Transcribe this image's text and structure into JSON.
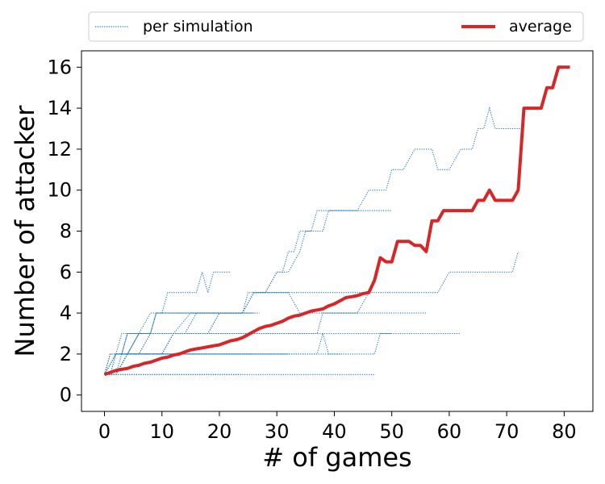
{
  "chart_data": {
    "type": "line",
    "title": "",
    "xlabel": "# of games",
    "ylabel": "Number of attacker",
    "xlim": [
      -4,
      85
    ],
    "ylim": [
      -0.8,
      16.8
    ],
    "xticks": [
      0,
      10,
      20,
      30,
      40,
      50,
      60,
      70,
      80
    ],
    "yticks": [
      0,
      2,
      4,
      6,
      8,
      10,
      12,
      14,
      16
    ],
    "grid": false,
    "legend": {
      "placement": "top, above plot",
      "entries": [
        "per simulation",
        "average"
      ]
    },
    "colors": {
      "per_simulation": "#1f77b4",
      "average": "#d62728"
    },
    "series": [
      {
        "name": "average",
        "x": [
          0,
          1,
          2,
          3,
          4,
          5,
          6,
          7,
          8,
          9,
          10,
          11,
          12,
          13,
          14,
          15,
          16,
          17,
          18,
          19,
          20,
          21,
          22,
          23,
          24,
          25,
          26,
          27,
          28,
          29,
          30,
          31,
          32,
          33,
          34,
          35,
          36,
          37,
          38,
          39,
          40,
          41,
          42,
          43,
          44,
          45,
          46,
          47,
          48,
          49,
          50,
          51,
          52,
          53,
          54,
          55,
          56,
          57,
          58,
          59,
          60,
          61,
          62,
          63,
          64,
          65,
          66,
          67,
          68,
          69,
          70,
          71,
          72,
          73,
          74,
          75,
          76,
          77,
          78,
          79,
          80,
          81
        ],
        "y": [
          1.0,
          1.1,
          1.2,
          1.25,
          1.3,
          1.4,
          1.45,
          1.55,
          1.6,
          1.7,
          1.8,
          1.85,
          1.95,
          2.0,
          2.1,
          2.2,
          2.25,
          2.3,
          2.35,
          2.4,
          2.45,
          2.55,
          2.65,
          2.7,
          2.8,
          2.95,
          3.1,
          3.25,
          3.35,
          3.4,
          3.5,
          3.6,
          3.75,
          3.85,
          3.9,
          4.0,
          4.1,
          4.15,
          4.2,
          4.35,
          4.45,
          4.6,
          4.75,
          4.8,
          4.85,
          4.95,
          5.0,
          5.6,
          6.7,
          6.5,
          6.5,
          7.5,
          7.5,
          7.5,
          7.3,
          7.3,
          7.0,
          8.5,
          8.5,
          9.0,
          9.0,
          9.0,
          9.0,
          9.0,
          9.0,
          9.5,
          9.5,
          10.0,
          9.5,
          9.5,
          9.5,
          9.5,
          10.0,
          14.0,
          14.0,
          14.0,
          14.0,
          15.0,
          15.0,
          16.0,
          16.0,
          16.0
        ]
      },
      {
        "name": "per simulation",
        "x": [
          0,
          2,
          4,
          6,
          8,
          10,
          12,
          14,
          16,
          18,
          20,
          22,
          24
        ],
        "y": [
          1,
          1,
          1,
          1,
          1,
          1,
          1,
          1,
          1,
          1,
          1,
          1,
          1
        ]
      },
      {
        "name": "per simulation",
        "x": [
          0,
          1,
          2,
          4,
          8,
          12,
          16,
          20,
          24,
          26,
          30,
          36,
          42,
          46,
          47
        ],
        "y": [
          1,
          1,
          1,
          1,
          1,
          1,
          1,
          1,
          1,
          1,
          1,
          1,
          1,
          1,
          1
        ]
      },
      {
        "name": "per simulation",
        "x": [
          0,
          1,
          3,
          6,
          9,
          12,
          15,
          17
        ],
        "y": [
          1,
          2,
          2,
          2,
          2,
          2,
          2,
          2
        ]
      },
      {
        "name": "per simulation",
        "x": [
          0,
          1,
          2,
          5,
          10,
          15,
          20,
          25,
          30,
          32
        ],
        "y": [
          1,
          2,
          2,
          2,
          2,
          2,
          2,
          2,
          2,
          2
        ]
      },
      {
        "name": "per simulation",
        "x": [
          0,
          1,
          2,
          4,
          8,
          12,
          16,
          20,
          24,
          26
        ],
        "y": [
          1,
          1,
          2,
          2,
          2,
          2,
          2,
          2,
          2,
          2
        ]
      },
      {
        "name": "per simulation",
        "x": [
          0,
          1,
          2,
          3,
          4,
          6,
          10,
          14,
          18,
          22,
          25
        ],
        "y": [
          1,
          1,
          2,
          2,
          3,
          3,
          3,
          3,
          3,
          3,
          3
        ]
      },
      {
        "name": "per simulation",
        "x": [
          0,
          1,
          2,
          3,
          5,
          10,
          15,
          20,
          25,
          30,
          35,
          40,
          45,
          50
        ],
        "y": [
          1,
          2,
          2,
          3,
          3,
          3,
          3,
          3,
          3,
          3,
          3,
          3,
          3,
          3
        ]
      },
      {
        "name": "per simulation",
        "x": [
          0,
          2,
          4,
          6,
          8,
          10,
          12,
          14,
          16,
          17
        ],
        "y": [
          1,
          1,
          2,
          2,
          3,
          3,
          3,
          3,
          3,
          3
        ]
      },
      {
        "name": "per simulation",
        "x": [
          0,
          2,
          4,
          6,
          8,
          9,
          10,
          12,
          14,
          16,
          18,
          20,
          22,
          24,
          27
        ],
        "y": [
          1,
          2,
          2,
          3,
          3,
          4,
          4,
          4,
          4,
          4,
          4,
          4,
          4,
          4,
          4
        ]
      },
      {
        "name": "per simulation",
        "x": [
          0,
          2,
          3,
          4,
          6,
          8,
          9,
          10,
          12,
          14,
          16,
          18,
          20,
          22,
          24,
          26
        ],
        "y": [
          1,
          1,
          2,
          2,
          3,
          3,
          4,
          4,
          4,
          4,
          4,
          4,
          4,
          4,
          4,
          4
        ]
      },
      {
        "name": "per simulation",
        "x": [
          0,
          2,
          3,
          4,
          5,
          6,
          8,
          10,
          11,
          12,
          14,
          15,
          16,
          17,
          18,
          19,
          20,
          21,
          22
        ],
        "y": [
          1,
          2,
          2,
          3,
          3,
          3,
          4,
          4,
          5,
          5,
          5,
          5,
          5,
          6,
          5,
          6,
          6,
          6,
          6
        ]
      },
      {
        "name": "per simulation",
        "x": [
          0,
          2,
          4,
          6,
          8,
          10,
          12,
          15,
          18,
          20,
          22,
          24,
          26,
          28,
          30,
          32,
          34,
          35,
          36,
          38,
          40,
          42,
          44,
          46
        ],
        "y": [
          1,
          2,
          2,
          3,
          3,
          3,
          3,
          4,
          4,
          4,
          4,
          4,
          5,
          5,
          5,
          5,
          5,
          5,
          5,
          5,
          5,
          5,
          5,
          5
        ]
      },
      {
        "name": "per simulation",
        "x": [
          0,
          2,
          4,
          6,
          8,
          10,
          12,
          14,
          16,
          18,
          20,
          22,
          24,
          25,
          26,
          28,
          30,
          32,
          34,
          36,
          38,
          40,
          42,
          44,
          46,
          48,
          50,
          52,
          54,
          55,
          56
        ],
        "y": [
          1,
          2,
          2,
          2,
          3,
          3,
          3,
          3,
          4,
          4,
          4,
          4,
          4,
          5,
          5,
          5,
          5,
          5,
          4,
          4,
          4,
          4,
          4,
          4,
          4,
          4,
          4,
          4,
          4,
          4,
          4
        ]
      },
      {
        "name": "per simulation",
        "x": [
          0,
          2,
          4,
          6,
          8,
          10,
          12,
          14,
          16,
          18,
          20,
          22,
          24,
          26,
          28,
          30,
          32,
          34,
          35,
          36,
          37,
          38,
          39,
          40,
          41
        ],
        "y": [
          1,
          1,
          2,
          2,
          2,
          2,
          2,
          2,
          2,
          2,
          2,
          2,
          2,
          2,
          2,
          2,
          2,
          2,
          2,
          2,
          2,
          3,
          2,
          2,
          2
        ]
      },
      {
        "name": "per simulation",
        "x": [
          0,
          2,
          4,
          6,
          8,
          10,
          12,
          14,
          16,
          18,
          20,
          22,
          24,
          26,
          28,
          30,
          32,
          34,
          36,
          37,
          38,
          39,
          40,
          41,
          42,
          44,
          46,
          47,
          48,
          49,
          50,
          52,
          54,
          56,
          58,
          60,
          62,
          64,
          66,
          68,
          70,
          71,
          72
        ],
        "y": [
          1,
          1,
          2,
          2,
          2,
          2,
          3,
          3,
          3,
          3,
          3,
          3,
          3,
          3,
          3,
          3,
          3,
          3,
          3,
          3,
          4,
          4,
          4,
          4,
          4,
          4,
          5,
          5,
          5,
          5,
          5,
          5,
          5,
          5,
          5,
          6,
          6,
          6,
          6,
          6,
          6,
          6,
          7
        ]
      },
      {
        "name": "per simulation",
        "x": [
          0,
          2,
          4,
          6,
          8,
          10,
          12,
          14,
          16,
          18,
          20,
          22,
          24,
          26,
          28,
          30,
          32,
          34,
          36,
          38,
          40,
          42,
          44,
          46,
          47,
          48,
          49,
          50,
          51,
          52,
          54,
          56,
          58,
          60,
          62
        ],
        "y": [
          1,
          1,
          2,
          2,
          2,
          2,
          2,
          2,
          2,
          2,
          2,
          2,
          2,
          2,
          2,
          2,
          2,
          2,
          2,
          2,
          2,
          2,
          2,
          2,
          2,
          3,
          3,
          3,
          3,
          3,
          3,
          3,
          3,
          3,
          3
        ]
      },
      {
        "name": "per simulation",
        "x": [
          0,
          2,
          4,
          6,
          8,
          10,
          12,
          14,
          16,
          18,
          20,
          22,
          24,
          26,
          28,
          30,
          31,
          32,
          33,
          34,
          35,
          36,
          37,
          38,
          40,
          42,
          44,
          46,
          47,
          48,
          49,
          50,
          51,
          52,
          54,
          56,
          57,
          58,
          60,
          62,
          64,
          65,
          66,
          67,
          68,
          70,
          72,
          73
        ],
        "y": [
          1,
          1,
          2,
          2,
          2,
          2,
          3,
          3,
          3,
          3,
          4,
          4,
          4,
          5,
          5,
          6,
          6,
          7,
          7,
          8,
          8,
          8,
          9,
          9,
          9,
          9,
          9,
          10,
          10,
          10,
          10,
          11,
          11,
          11,
          12,
          12,
          12,
          11,
          11,
          12,
          12,
          13,
          13,
          14,
          13,
          13,
          13,
          13
        ]
      },
      {
        "name": "per simulation",
        "x": [
          0,
          2,
          4,
          6,
          8,
          10,
          12,
          14,
          16,
          18,
          20,
          22,
          24,
          26,
          28,
          30,
          32,
          34,
          35,
          36,
          37,
          38,
          39,
          40,
          42,
          44,
          45,
          46,
          47,
          48,
          49,
          50
        ],
        "y": [
          1,
          1,
          2,
          2,
          2,
          2,
          3,
          3,
          3,
          3,
          4,
          4,
          4,
          5,
          5,
          6,
          6,
          7,
          8,
          8,
          8,
          8,
          9,
          9,
          9,
          9,
          9,
          9,
          9,
          9,
          9,
          9
        ]
      }
    ]
  }
}
